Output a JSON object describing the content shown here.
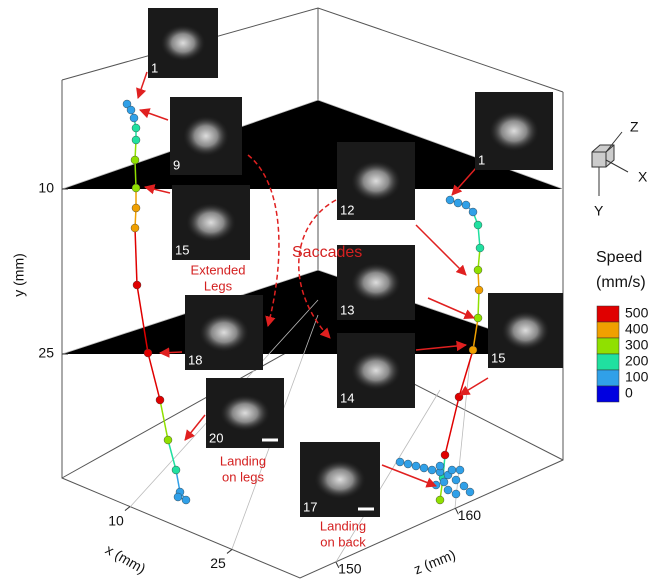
{
  "chart_data": {
    "type": "trajectory3d",
    "axes": {
      "x": {
        "label": "x (mm)",
        "lim": [
          0,
          35
        ],
        "ticks": [
          10,
          25
        ]
      },
      "y": {
        "label": "y (mm)",
        "lim": [
          0,
          35
        ],
        "ticks": [
          10,
          25
        ]
      },
      "z": {
        "label": "z (mm)",
        "lim": [
          147,
          169
        ],
        "ticks": [
          150,
          160
        ]
      }
    },
    "frames": [
      1,
      9,
      15,
      18,
      20,
      12,
      13,
      14,
      1,
      15,
      17
    ],
    "annotations": {
      "saccades": "Saccades",
      "extended_legs": [
        "Extended",
        "Legs"
      ],
      "landing_legs": [
        "Landing",
        "on legs"
      ],
      "landing_back": [
        "Landing",
        "on back"
      ]
    },
    "triad": [
      "Z",
      "X",
      "Y"
    ],
    "colorbar": {
      "title": [
        "Speed",
        "(mm/s)"
      ],
      "ticks": [
        500,
        400,
        300,
        200,
        100,
        0
      ],
      "colors": [
        "#e00000",
        "#f0a000",
        "#90e000",
        "#20e0a0",
        "#30a0e8",
        "#0000e0"
      ]
    }
  }
}
